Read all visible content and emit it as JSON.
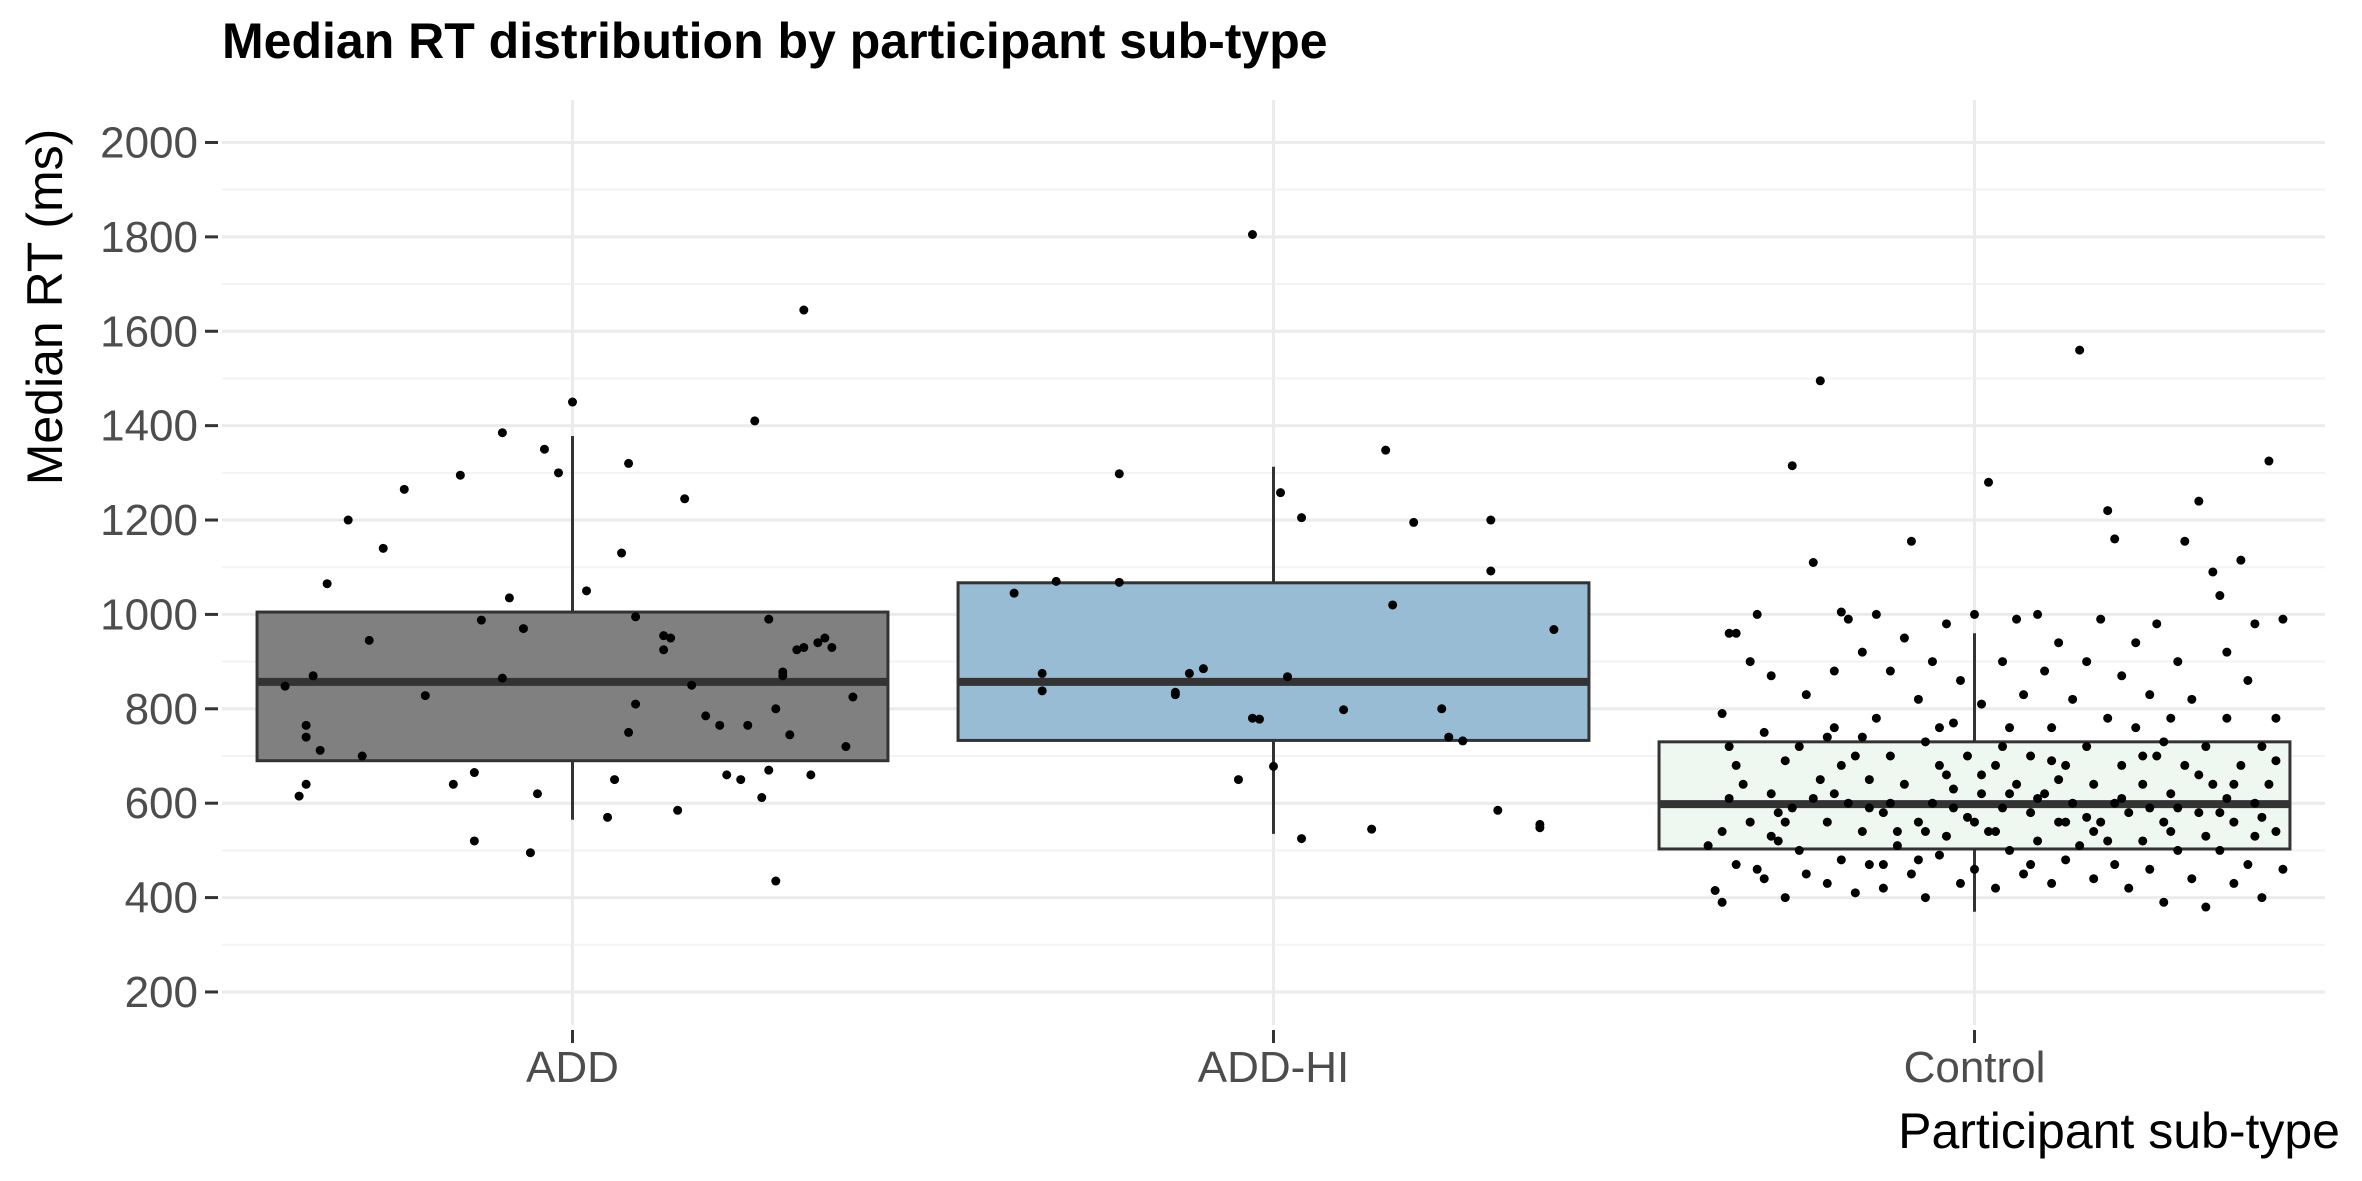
{
  "chart_data": {
    "type": "box",
    "title": "Median RT distribution by participant sub-type",
    "xlabel": "Participant sub-type",
    "ylabel": "Median RT (ms)",
    "categories": [
      "ADD",
      "ADD-HI",
      "Control"
    ],
    "ylim": [
      130,
      2090
    ],
    "yticks": [
      200,
      400,
      600,
      800,
      1000,
      1200,
      1400,
      1600,
      1800,
      2000
    ],
    "grid": true,
    "colors": {
      "ADD": "#808080",
      "ADD-HI": "#98bcd4",
      "Control": "#eff8f0",
      "outline": "#333333",
      "points": "#000000"
    },
    "boxes": [
      {
        "category": "ADD",
        "whisker_low": 565,
        "q1": 690,
        "median": 857,
        "q3": 1005,
        "whisker_high": 1378
      },
      {
        "category": "ADD-HI",
        "whisker_low": 535,
        "q1": 733,
        "median": 857,
        "q3": 1067,
        "whisker_high": 1313
      },
      {
        "category": "Control",
        "whisker_low": 370,
        "q1": 503,
        "median": 598,
        "q3": 730,
        "whisker_high": 960
      }
    ],
    "points": {
      "ADD": [
        [
          -0.41,
          848
        ],
        [
          -0.39,
          615
        ],
        [
          -0.38,
          640
        ],
        [
          -0.38,
          765
        ],
        [
          -0.38,
          740
        ],
        [
          -0.37,
          870
        ],
        [
          -0.36,
          712
        ],
        [
          -0.35,
          1065
        ],
        [
          -0.32,
          1200
        ],
        [
          -0.3,
          700
        ],
        [
          -0.29,
          945
        ],
        [
          -0.27,
          1140
        ],
        [
          -0.24,
          1265
        ],
        [
          -0.21,
          828
        ],
        [
          -0.17,
          640
        ],
        [
          -0.16,
          1295
        ],
        [
          -0.14,
          665
        ],
        [
          -0.14,
          520
        ],
        [
          -0.13,
          988
        ],
        [
          -0.1,
          1385
        ],
        [
          -0.1,
          865
        ],
        [
          -0.09,
          1035
        ],
        [
          -0.07,
          970
        ],
        [
          -0.06,
          495
        ],
        [
          -0.05,
          620
        ],
        [
          -0.04,
          1350
        ],
        [
          -0.02,
          1300
        ],
        [
          0.0,
          1450
        ],
        [
          0.02,
          1050
        ],
        [
          0.05,
          570
        ],
        [
          0.06,
          650
        ],
        [
          0.07,
          1130
        ],
        [
          0.08,
          1320
        ],
        [
          0.08,
          750
        ],
        [
          0.09,
          810
        ],
        [
          0.09,
          995
        ],
        [
          0.13,
          955
        ],
        [
          0.13,
          925
        ],
        [
          0.14,
          950
        ],
        [
          0.15,
          585
        ],
        [
          0.16,
          1245
        ],
        [
          0.17,
          850
        ],
        [
          0.19,
          785
        ],
        [
          0.21,
          765
        ],
        [
          0.22,
          660
        ],
        [
          0.24,
          650
        ],
        [
          0.25,
          765
        ],
        [
          0.26,
          1410
        ],
        [
          0.27,
          612
        ],
        [
          0.28,
          670
        ],
        [
          0.28,
          990
        ],
        [
          0.29,
          800
        ],
        [
          0.29,
          435
        ],
        [
          0.3,
          870
        ],
        [
          0.3,
          878
        ],
        [
          0.31,
          745
        ],
        [
          0.32,
          925
        ],
        [
          0.33,
          1645
        ],
        [
          0.33,
          930
        ],
        [
          0.34,
          660
        ],
        [
          0.35,
          940
        ],
        [
          0.36,
          950
        ],
        [
          0.37,
          930
        ],
        [
          0.39,
          720
        ],
        [
          0.4,
          825
        ]
      ],
      "ADD-HI": [
        [
          -0.37,
          1045
        ],
        [
          -0.33,
          875
        ],
        [
          -0.33,
          838
        ],
        [
          -0.31,
          1070
        ],
        [
          -0.22,
          1298
        ],
        [
          -0.22,
          1068
        ],
        [
          -0.14,
          835
        ],
        [
          -0.14,
          830
        ],
        [
          -0.12,
          875
        ],
        [
          -0.1,
          885
        ],
        [
          -0.05,
          650
        ],
        [
          -0.03,
          1805
        ],
        [
          -0.03,
          780
        ],
        [
          -0.02,
          778
        ],
        [
          0.0,
          678
        ],
        [
          0.01,
          1258
        ],
        [
          0.02,
          868
        ],
        [
          0.04,
          1205
        ],
        [
          0.04,
          525
        ],
        [
          0.1,
          798
        ],
        [
          0.16,
          1348
        ],
        [
          0.14,
          545
        ],
        [
          0.17,
          1020
        ],
        [
          0.2,
          1195
        ],
        [
          0.24,
          800
        ],
        [
          0.25,
          740
        ],
        [
          0.27,
          732
        ],
        [
          0.31,
          1200
        ],
        [
          0.31,
          1092
        ],
        [
          0.32,
          585
        ],
        [
          0.38,
          555
        ],
        [
          0.38,
          548
        ],
        [
          0.4,
          968
        ]
      ],
      "Control": [
        [
          -0.37,
          415
        ],
        [
          -0.36,
          540
        ],
        [
          -0.36,
          390
        ],
        [
          -0.35,
          610
        ],
        [
          -0.35,
          960
        ],
        [
          -0.34,
          960
        ],
        [
          -0.34,
          680
        ],
        [
          -0.34,
          470
        ],
        [
          -0.32,
          560
        ],
        [
          -0.32,
          900
        ],
        [
          -0.31,
          1000
        ],
        [
          -0.3,
          440
        ],
        [
          -0.3,
          750
        ],
        [
          -0.29,
          620
        ],
        [
          -0.29,
          870
        ],
        [
          -0.28,
          520
        ],
        [
          -0.27,
          400
        ],
        [
          -0.27,
          690
        ],
        [
          -0.26,
          590
        ],
        [
          -0.26,
          1315
        ],
        [
          -0.25,
          500
        ],
        [
          -0.25,
          720
        ],
        [
          -0.24,
          830
        ],
        [
          -0.23,
          1110
        ],
        [
          -0.22,
          1495
        ],
        [
          -0.22,
          650
        ],
        [
          -0.21,
          430
        ],
        [
          -0.21,
          560
        ],
        [
          -0.2,
          880
        ],
        [
          -0.2,
          760
        ],
        [
          -0.19,
          480
        ],
        [
          -0.19,
          1005
        ],
        [
          -0.18,
          600
        ],
        [
          -0.18,
          990
        ],
        [
          -0.17,
          410
        ],
        [
          -0.17,
          700
        ],
        [
          -0.16,
          540
        ],
        [
          -0.16,
          920
        ],
        [
          -0.15,
          650
        ],
        [
          -0.15,
          470
        ],
        [
          -0.14,
          780
        ],
        [
          -0.14,
          1000
        ],
        [
          -0.13,
          420
        ],
        [
          -0.13,
          580
        ],
        [
          -0.12,
          880
        ],
        [
          -0.12,
          700
        ],
        [
          -0.11,
          510
        ],
        [
          -0.1,
          950
        ],
        [
          -0.1,
          640
        ],
        [
          -0.09,
          1155
        ],
        [
          -0.09,
          450
        ],
        [
          -0.08,
          560
        ],
        [
          -0.08,
          820
        ],
        [
          -0.07,
          730
        ],
        [
          -0.07,
          400
        ],
        [
          -0.06,
          600
        ],
        [
          -0.06,
          900
        ],
        [
          -0.05,
          680
        ],
        [
          -0.05,
          490
        ],
        [
          -0.04,
          980
        ],
        [
          -0.04,
          530
        ],
        [
          -0.03,
          770
        ],
        [
          -0.03,
          630
        ],
        [
          -0.02,
          430
        ],
        [
          -0.02,
          860
        ],
        [
          -0.01,
          570
        ],
        [
          -0.01,
          700
        ],
        [
          0.0,
          1000
        ],
        [
          0.0,
          460
        ],
        [
          0.01,
          620
        ],
        [
          0.01,
          810
        ],
        [
          0.02,
          540
        ],
        [
          0.02,
          1280
        ],
        [
          0.03,
          680
        ],
        [
          0.03,
          420
        ],
        [
          0.04,
          900
        ],
        [
          0.04,
          590
        ],
        [
          0.05,
          760
        ],
        [
          0.05,
          500
        ],
        [
          0.06,
          990
        ],
        [
          0.06,
          640
        ],
        [
          0.07,
          450
        ],
        [
          0.07,
          830
        ],
        [
          0.08,
          580
        ],
        [
          0.08,
          700
        ],
        [
          0.09,
          1000
        ],
        [
          0.09,
          520
        ],
        [
          0.1,
          880
        ],
        [
          0.1,
          620
        ],
        [
          0.11,
          430
        ],
        [
          0.11,
          760
        ],
        [
          0.12,
          560
        ],
        [
          0.12,
          940
        ],
        [
          0.13,
          680
        ],
        [
          0.13,
          480
        ],
        [
          0.14,
          820
        ],
        [
          0.14,
          600
        ],
        [
          0.15,
          1560
        ],
        [
          0.15,
          510
        ],
        [
          0.16,
          720
        ],
        [
          0.16,
          900
        ],
        [
          0.17,
          440
        ],
        [
          0.17,
          640
        ],
        [
          0.18,
          990
        ],
        [
          0.18,
          560
        ],
        [
          0.19,
          1220
        ],
        [
          0.19,
          780
        ],
        [
          0.2,
          1160
        ],
        [
          0.2,
          470
        ],
        [
          0.21,
          680
        ],
        [
          0.21,
          870
        ],
        [
          0.22,
          580
        ],
        [
          0.22,
          420
        ],
        [
          0.23,
          760
        ],
        [
          0.23,
          940
        ],
        [
          0.24,
          520
        ],
        [
          0.24,
          640
        ],
        [
          0.25,
          830
        ],
        [
          0.25,
          460
        ],
        [
          0.26,
          700
        ],
        [
          0.26,
          980
        ],
        [
          0.27,
          560
        ],
        [
          0.27,
          390
        ],
        [
          0.28,
          620
        ],
        [
          0.28,
          780
        ],
        [
          0.29,
          900
        ],
        [
          0.29,
          500
        ],
        [
          0.3,
          680
        ],
        [
          0.3,
          1155
        ],
        [
          0.31,
          440
        ],
        [
          0.31,
          820
        ],
        [
          0.32,
          580
        ],
        [
          0.32,
          1240
        ],
        [
          0.33,
          720
        ],
        [
          0.33,
          380
        ],
        [
          0.34,
          1090
        ],
        [
          0.34,
          640
        ],
        [
          0.35,
          1040
        ],
        [
          0.35,
          500
        ],
        [
          0.36,
          780
        ],
        [
          0.36,
          920
        ],
        [
          0.37,
          560
        ],
        [
          0.37,
          430
        ],
        [
          0.38,
          680
        ],
        [
          0.38,
          1115
        ],
        [
          0.39,
          860
        ],
        [
          0.39,
          470
        ],
        [
          0.4,
          600
        ],
        [
          0.4,
          980
        ],
        [
          0.41,
          720
        ],
        [
          0.41,
          400
        ],
        [
          0.42,
          1325
        ],
        [
          0.42,
          640
        ],
        [
          0.43,
          540
        ],
        [
          0.43,
          780
        ],
        [
          0.44,
          990
        ],
        [
          0.44,
          460
        ],
        [
          -0.33,
          640
        ],
        [
          -0.31,
          460
        ],
        [
          -0.28,
          580
        ],
        [
          -0.24,
          450
        ],
        [
          -0.2,
          620
        ],
        [
          -0.16,
          740
        ],
        [
          -0.12,
          600
        ],
        [
          -0.08,
          480
        ],
        [
          -0.04,
          660
        ],
        [
          0.0,
          560
        ],
        [
          0.04,
          720
        ],
        [
          0.08,
          470
        ],
        [
          0.12,
          650
        ],
        [
          0.16,
          570
        ],
        [
          0.2,
          600
        ],
        [
          0.24,
          700
        ],
        [
          0.28,
          540
        ],
        [
          0.32,
          660
        ],
        [
          0.36,
          610
        ],
        [
          0.4,
          530
        ],
        [
          -0.35,
          720
        ],
        [
          -0.27,
          560
        ],
        [
          -0.19,
          680
        ],
        [
          -0.11,
          540
        ],
        [
          -0.03,
          590
        ],
        [
          0.05,
          620
        ],
        [
          0.13,
          560
        ],
        [
          0.21,
          610
        ],
        [
          0.29,
          590
        ],
        [
          0.37,
          640
        ],
        [
          -0.38,
          510
        ],
        [
          -0.29,
          530
        ],
        [
          -0.21,
          740
        ],
        [
          -0.13,
          470
        ],
        [
          -0.05,
          760
        ],
        [
          0.03,
          540
        ],
        [
          0.11,
          690
        ],
        [
          0.19,
          520
        ],
        [
          0.27,
          730
        ],
        [
          0.35,
          580
        ],
        [
          0.43,
          690
        ],
        [
          -0.36,
          790
        ],
        [
          -0.23,
          610
        ],
        [
          -0.15,
          590
        ],
        [
          -0.07,
          540
        ],
        [
          0.01,
          660
        ],
        [
          0.09,
          610
        ],
        [
          0.17,
          540
        ],
        [
          0.25,
          590
        ],
        [
          0.33,
          530
        ],
        [
          0.41,
          570
        ]
      ]
    }
  }
}
